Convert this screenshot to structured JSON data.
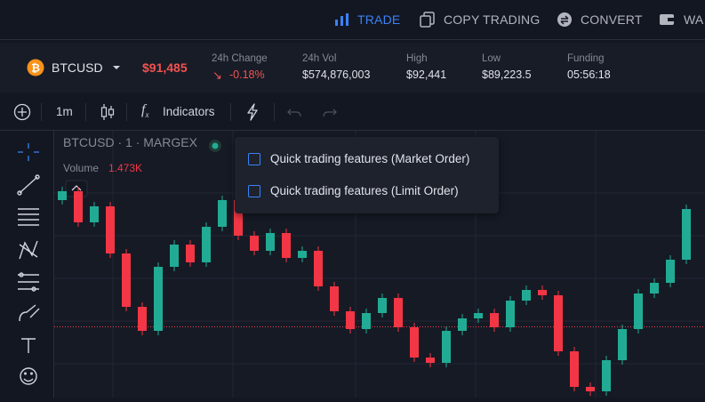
{
  "nav": {
    "items": [
      "TRADE",
      "COPY TRADING",
      "CONVERT",
      "WA"
    ]
  },
  "ticker": {
    "symbol": "BTCUSD",
    "price": {
      "value": 91485,
      "label": "$91,485"
    },
    "stats": [
      {
        "label": "24h Change",
        "value": "-0.18%"
      },
      {
        "label": "24h Vol",
        "value": "$574,876,003"
      },
      {
        "label": "High",
        "value": "$92,441"
      },
      {
        "label": "Low",
        "value": "$89,223.5"
      },
      {
        "label": "Funding",
        "value": "05:56:18"
      }
    ]
  },
  "toolbar": {
    "interval": "1m",
    "indicators": "Indicators"
  },
  "chart": {
    "legend": "BTCUSD · 1 · MARGEX",
    "volume_label": "Volume",
    "volume_value": "1.473K",
    "ylim": [
      91326,
      91920
    ],
    "candles": [
      [
        91770,
        91800,
        91760,
        91790
      ],
      [
        91790,
        91800,
        91710,
        91720
      ],
      [
        91720,
        91766,
        91710,
        91756
      ],
      [
        91756,
        91766,
        91640,
        91650
      ],
      [
        91650,
        91660,
        91520,
        91530
      ],
      [
        91530,
        91540,
        91466,
        91476
      ],
      [
        91476,
        91630,
        91466,
        91620
      ],
      [
        91620,
        91680,
        91610,
        91670
      ],
      [
        91670,
        91680,
        91620,
        91630
      ],
      [
        91630,
        91720,
        91620,
        91710
      ],
      [
        91710,
        91780,
        91700,
        91770
      ],
      [
        91770,
        91780,
        91680,
        91690
      ],
      [
        91690,
        91700,
        91646,
        91656
      ],
      [
        91656,
        91706,
        91646,
        91696
      ],
      [
        91696,
        91706,
        91630,
        91640
      ],
      [
        91640,
        91666,
        91630,
        91656
      ],
      [
        91656,
        91666,
        91566,
        91576
      ],
      [
        91576,
        91586,
        91510,
        91520
      ],
      [
        91520,
        91530,
        91470,
        91480
      ],
      [
        91480,
        91526,
        91470,
        91516
      ],
      [
        91516,
        91560,
        91506,
        91550
      ],
      [
        91550,
        91560,
        91474,
        91484
      ],
      [
        91484,
        91494,
        91406,
        91416
      ],
      [
        91416,
        91426,
        91394,
        91404
      ],
      [
        91404,
        91486,
        91394,
        91476
      ],
      [
        91476,
        91514,
        91466,
        91504
      ],
      [
        91504,
        91526,
        91494,
        91516
      ],
      [
        91516,
        91526,
        91474,
        91484
      ],
      [
        91484,
        91554,
        91474,
        91544
      ],
      [
        91544,
        91578,
        91534,
        91568
      ],
      [
        91568,
        91578,
        91546,
        91556
      ],
      [
        91556,
        91566,
        91420,
        91430
      ],
      [
        91430,
        91440,
        91340,
        91350
      ],
      [
        91350,
        91360,
        91330,
        91340
      ],
      [
        91340,
        91420,
        91330,
        91410
      ],
      [
        91410,
        91490,
        91400,
        91480
      ],
      [
        91480,
        91570,
        91470,
        91560
      ],
      [
        91560,
        91594,
        91550,
        91584
      ],
      [
        91584,
        91646,
        91574,
        91636
      ],
      [
        91636,
        91760,
        91626,
        91750
      ]
    ],
    "up_color": "#22ab94",
    "down_color": "#f23645"
  },
  "menu": {
    "options": [
      "Quick trading features (Market Order)",
      "Quick trading features (Limit Order)"
    ]
  }
}
